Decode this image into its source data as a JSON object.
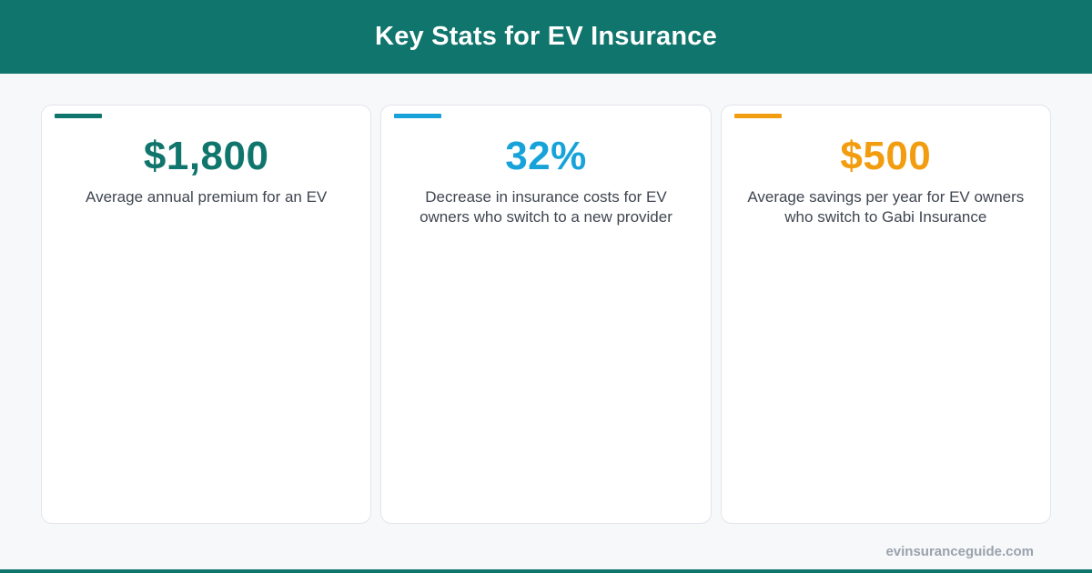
{
  "header": {
    "title": "Key Stats for EV Insurance"
  },
  "colors": {
    "brand": "#10756c",
    "blue": "#17a3d9",
    "orange": "#f29d0f",
    "text": "#3f4550",
    "muted": "#9aa2ad"
  },
  "stats": [
    {
      "value": "$1,800",
      "description": "Average annual premium for an EV",
      "color": "#10756c"
    },
    {
      "value": "32%",
      "description": "Decrease in insurance costs for EV owners who switch to a new provider",
      "color": "#17a3d9"
    },
    {
      "value": "$500",
      "description": "Average savings per year for EV owners who switch to Gabi Insurance",
      "color": "#f29d0f"
    }
  ],
  "footer": {
    "url": "evinsuranceguide.com"
  }
}
